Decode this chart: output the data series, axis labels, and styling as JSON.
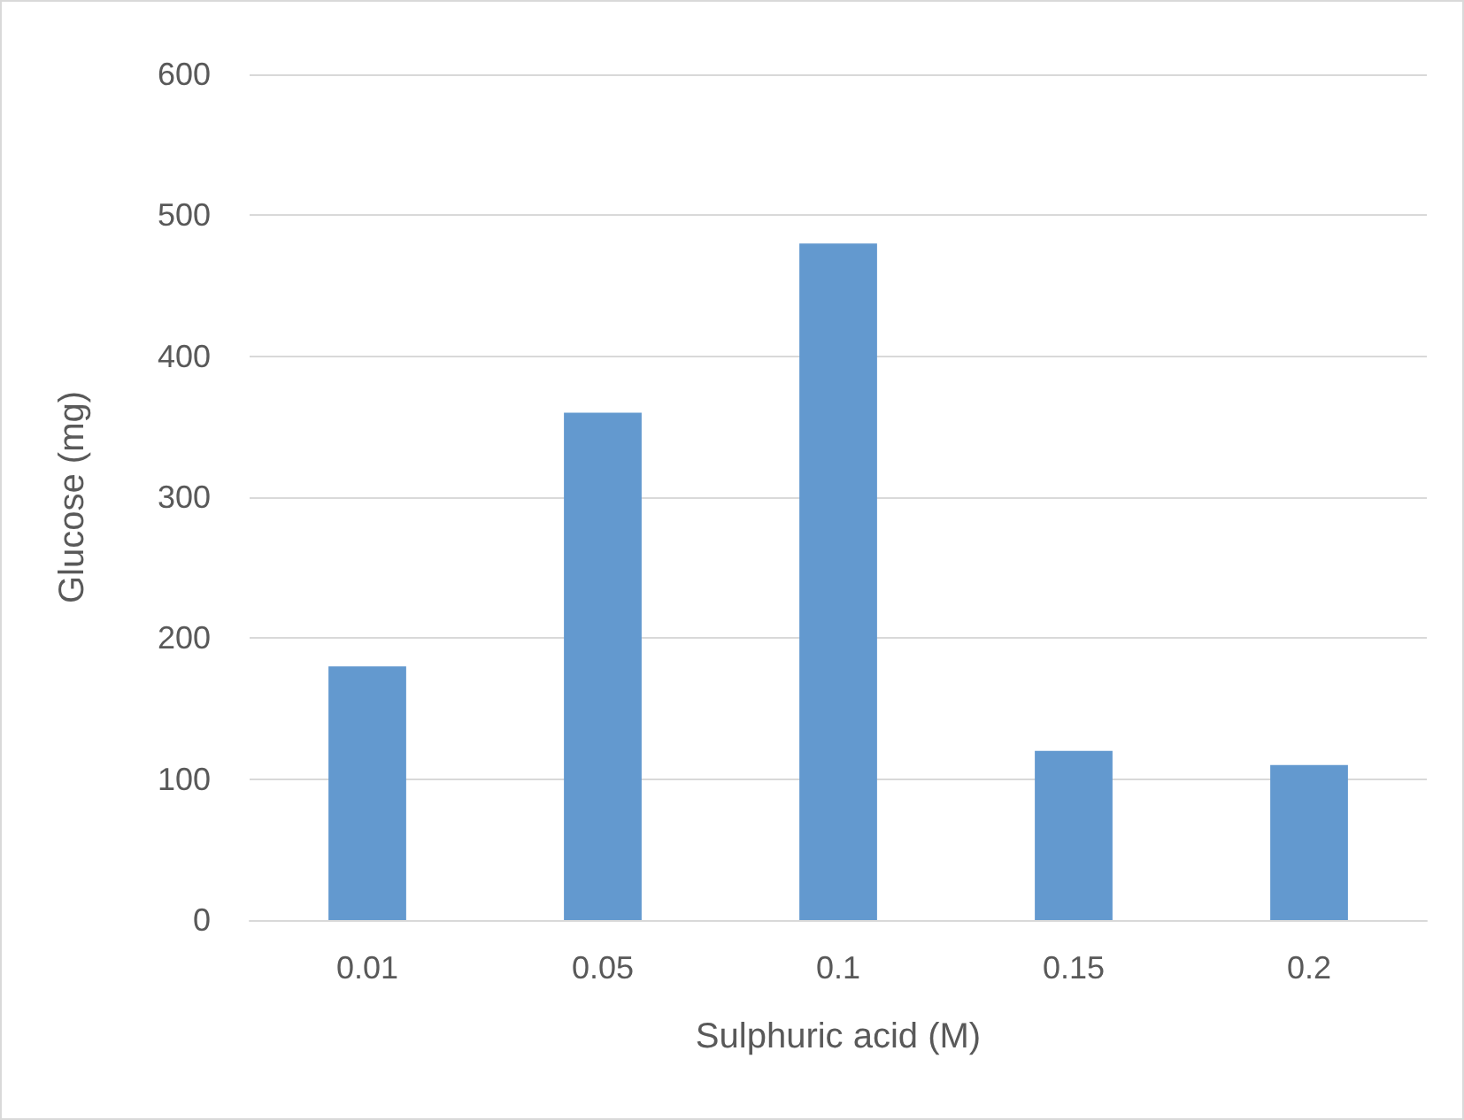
{
  "chart_data": {
    "type": "bar",
    "xlabel": "Sulphuric acid (M)",
    "ylabel": "Glucose (mg)",
    "categories": [
      "0.01",
      "0.05",
      "0.1",
      "0.15",
      "0.2"
    ],
    "values": [
      180,
      360,
      480,
      120,
      110
    ],
    "color": "#6399cf",
    "ylim": [
      0,
      600
    ],
    "yticks": [
      0,
      100,
      200,
      300,
      400,
      500,
      600
    ],
    "grid": "y"
  }
}
